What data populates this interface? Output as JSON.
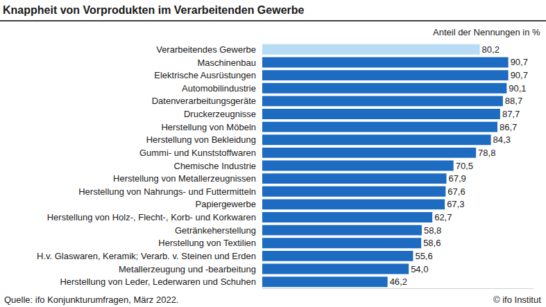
{
  "chart_data": {
    "type": "bar",
    "orientation": "horizontal",
    "title": "Knappheit von Vorprodukten im Verarbeitenden Gewerbe",
    "subtitle": "Anteil der Nennungen in %",
    "source": "Quelle: ifo Konjunkturumfragen, März 2022.",
    "credit": "© ifo Institut",
    "categories": [
      "Verarbeitendes Gewerbe",
      "Maschinenbau",
      "Elektrische Ausrüstungen",
      "Automobilindustrie",
      "Datenverarbeitungsgeräte",
      "Druckerzeugnisse",
      "Herstellung von Möbeln",
      "Herstellung von Bekleidung",
      "Gummi- und Kunststoffwaren",
      "Chemische Industrie",
      "Herstellung von Metallerzeugnissen",
      "Herstellung von Nahrungs- und Futtermitteln",
      "Papiergewerbe",
      "Herstellung von Holz-, Flecht-, Korb- und Korkwaren",
      "Getränkeherstellung",
      "Herstellung von Textilien",
      "H.v. Glaswaren, Keramik; Verarb. v. Steinen und Erden",
      "Metallerzeugung und -bearbeitung",
      "Herstellung von Leder, Lederwaren und Schuhen"
    ],
    "values": [
      80.2,
      90.7,
      90.7,
      90.1,
      88.7,
      87.7,
      86.7,
      84.3,
      78.8,
      70.5,
      67.9,
      67.6,
      67.3,
      62.7,
      58.8,
      58.6,
      55.6,
      54.0,
      46.2
    ],
    "value_labels": [
      "80,2",
      "90,7",
      "90,7",
      "90,1",
      "88,7",
      "87,7",
      "86,7",
      "84,3",
      "78,8",
      "70,5",
      "67,9",
      "67,6",
      "67,3",
      "62,7",
      "58,8",
      "58,6",
      "55,6",
      "54,0",
      "46,2"
    ],
    "colors": [
      "#b8dcf4",
      "#1d6cc1",
      "#1d6cc1",
      "#1d6cc1",
      "#1d6cc1",
      "#1d6cc1",
      "#1d6cc1",
      "#1d6cc1",
      "#1d6cc1",
      "#1d6cc1",
      "#1d6cc1",
      "#1d6cc1",
      "#1d6cc1",
      "#1d6cc1",
      "#1d6cc1",
      "#1d6cc1",
      "#1d6cc1",
      "#1d6cc1",
      "#1d6cc1"
    ],
    "xlim": [
      0,
      100
    ],
    "data_labels": true,
    "tick_labels": "y",
    "grid": false
  }
}
